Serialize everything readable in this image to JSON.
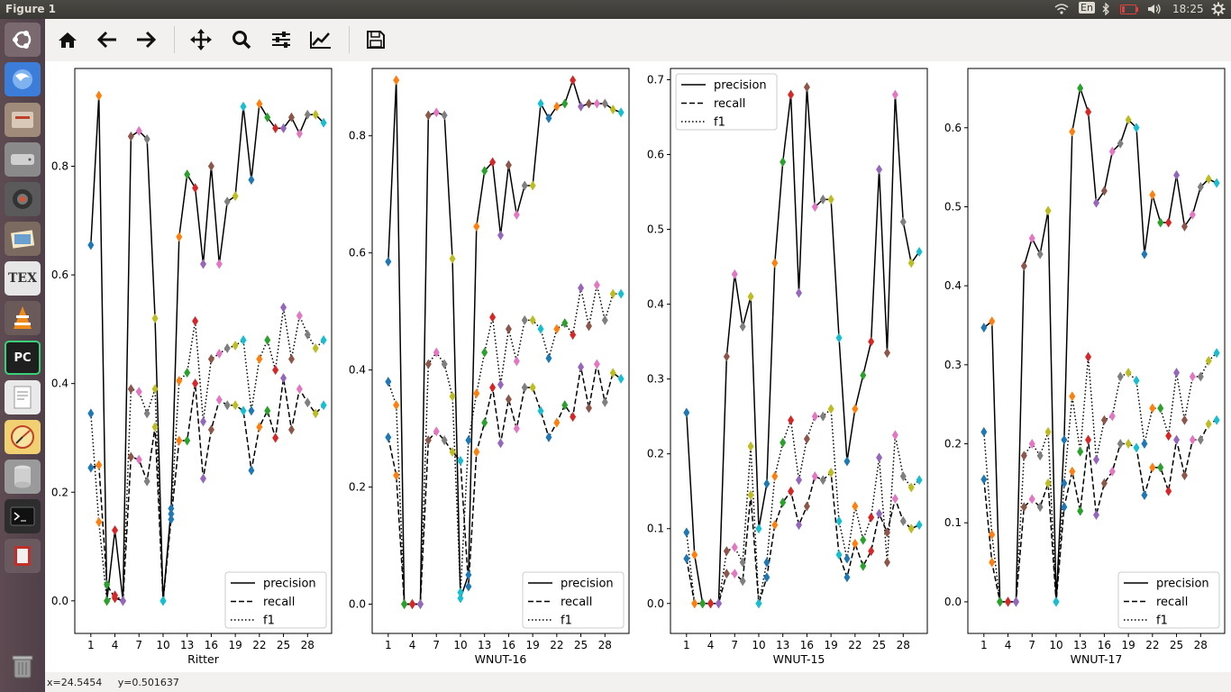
{
  "window": {
    "title": "Figure 1"
  },
  "tray": {
    "keyboard": "En",
    "time": "18:25"
  },
  "launcher": {
    "items": [
      "ubuntu-logo-icon",
      "browser-icon",
      "file-manager-icon",
      "disk-icon",
      "camera-icon",
      "photos-icon",
      "tex-icon",
      "vlc-icon",
      "pycharm-icon",
      "text-editor-icon",
      "spyder-icon",
      "database-icon",
      "terminal-icon",
      "book-icon",
      "trash-icon"
    ],
    "tex_label": "TEX",
    "pc_label": "PC"
  },
  "toolbar": {
    "buttons": [
      "home-icon",
      "back-arrow-icon",
      "forward-arrow-icon",
      "pan-icon",
      "zoom-icon",
      "configure-subplots-icon",
      "edit-axis-icon",
      "save-icon"
    ]
  },
  "status": {
    "coords": "x=24.5454     y=0.501637"
  },
  "colors": {
    "markers": [
      "#1f77b4",
      "#ff7f0e",
      "#2ca02c",
      "#d62728",
      "#9467bd",
      "#8c564b",
      "#e377c2",
      "#7f7f7f",
      "#bcbd22",
      "#17becf"
    ]
  },
  "chart_data": [
    {
      "type": "line",
      "xlabel": "Ritter",
      "ylabel": "",
      "xlim": [
        -1,
        31
      ],
      "ylim": [
        -0.06,
        0.98
      ],
      "xticks": [
        1,
        4,
        7,
        10,
        13,
        16,
        19,
        22,
        25,
        28
      ],
      "yticks": [
        0.0,
        0.2,
        0.4,
        0.6,
        0.8
      ],
      "ytick_labels": [
        "0.0",
        "0.2",
        "0.4",
        "0.6",
        "0.8"
      ],
      "legend": {
        "placement": "lower-right",
        "entries": [
          "precision",
          "recall",
          "f1"
        ]
      },
      "series": [
        {
          "name": "precision",
          "style": "solid",
          "values": [
            0.655,
            0.93,
            0.0,
            0.13,
            0.0,
            0.855,
            0.865,
            0.85,
            0.52,
            0.0,
            0.17,
            0.67,
            0.785,
            0.76,
            0.62,
            0.8,
            0.62,
            0.735,
            0.745,
            0.91,
            0.775,
            0.915,
            0.89,
            0.87,
            0.87,
            0.89,
            0.86,
            0.895,
            0.895,
            0.88
          ]
        },
        {
          "name": "recall",
          "style": "dashed",
          "values": [
            0.245,
            0.25,
            0.03,
            0.005,
            0.0,
            0.265,
            0.26,
            0.22,
            0.32,
            0.0,
            0.15,
            0.295,
            0.295,
            0.4,
            0.225,
            0.315,
            0.37,
            0.36,
            0.36,
            0.35,
            0.24,
            0.32,
            0.35,
            0.3,
            0.41,
            0.315,
            0.39,
            0.365,
            0.345,
            0.36
          ]
        },
        {
          "name": "f1",
          "style": "dotted",
          "values": [
            0.345,
            0.145,
            0.0,
            0.01,
            0.0,
            0.39,
            0.385,
            0.345,
            0.39,
            0.0,
            0.16,
            0.405,
            0.42,
            0.515,
            0.33,
            0.445,
            0.455,
            0.465,
            0.47,
            0.48,
            0.35,
            0.445,
            0.48,
            0.425,
            0.54,
            0.445,
            0.525,
            0.49,
            0.465,
            0.48
          ]
        }
      ]
    },
    {
      "type": "line",
      "xlabel": "WNUT-16",
      "ylabel": "",
      "xlim": [
        -1,
        31
      ],
      "ylim": [
        -0.05,
        0.915
      ],
      "xticks": [
        1,
        4,
        7,
        10,
        13,
        16,
        19,
        22,
        25,
        28
      ],
      "yticks": [
        0.0,
        0.2,
        0.4,
        0.6,
        0.8
      ],
      "ytick_labels": [
        "0.0",
        "0.2",
        "0.4",
        "0.6",
        "0.8"
      ],
      "legend": {
        "placement": "lower-right",
        "entries": [
          "precision",
          "recall",
          "f1"
        ]
      },
      "series": [
        {
          "name": "precision",
          "style": "solid",
          "values": [
            0.585,
            0.895,
            0.0,
            0.0,
            0.0,
            0.835,
            0.84,
            0.835,
            0.59,
            0.01,
            0.05,
            0.645,
            0.74,
            0.755,
            0.63,
            0.75,
            0.665,
            0.715,
            0.715,
            0.855,
            0.83,
            0.85,
            0.855,
            0.895,
            0.85,
            0.855,
            0.855,
            0.855,
            0.845,
            0.84
          ]
        },
        {
          "name": "recall",
          "style": "dashed",
          "values": [
            0.285,
            0.22,
            0.0,
            0.0,
            0.0,
            0.28,
            0.295,
            0.28,
            0.26,
            0.245,
            0.03,
            0.26,
            0.31,
            0.37,
            0.275,
            0.35,
            0.3,
            0.37,
            0.37,
            0.33,
            0.285,
            0.31,
            0.34,
            0.32,
            0.405,
            0.335,
            0.41,
            0.345,
            0.395,
            0.385
          ]
        },
        {
          "name": "f1",
          "style": "dotted",
          "values": [
            0.38,
            0.34,
            0.0,
            0.0,
            0.0,
            0.41,
            0.43,
            0.41,
            0.355,
            0.02,
            0.28,
            0.36,
            0.43,
            0.49,
            0.375,
            0.47,
            0.415,
            0.485,
            0.485,
            0.47,
            0.42,
            0.47,
            0.48,
            0.46,
            0.54,
            0.475,
            0.545,
            0.485,
            0.53,
            0.53
          ]
        }
      ]
    },
    {
      "type": "line",
      "xlabel": "WNUT-15",
      "ylabel": "",
      "xlim": [
        -1,
        31
      ],
      "ylim": [
        -0.04,
        0.715
      ],
      "xticks": [
        1,
        4,
        7,
        10,
        13,
        16,
        19,
        22,
        25,
        28
      ],
      "yticks": [
        0.0,
        0.1,
        0.2,
        0.3,
        0.4,
        0.5,
        0.6,
        0.7
      ],
      "ytick_labels": [
        "0.0",
        "0.1",
        "0.2",
        "0.3",
        "0.4",
        "0.5",
        "0.6",
        "0.7"
      ],
      "legend": {
        "placement": "upper-left",
        "entries": [
          "precision",
          "recall",
          "f1"
        ]
      },
      "series": [
        {
          "name": "precision",
          "style": "solid",
          "values": [
            0.255,
            0.065,
            0.0,
            0.0,
            0.0,
            0.33,
            0.44,
            0.37,
            0.41,
            0.1,
            0.16,
            0.455,
            0.59,
            0.68,
            0.415,
            0.69,
            0.53,
            0.54,
            0.54,
            0.355,
            0.19,
            0.26,
            0.305,
            0.35,
            0.58,
            0.335,
            0.68,
            0.51,
            0.455,
            0.47
          ]
        },
        {
          "name": "recall",
          "style": "dashed",
          "values": [
            0.06,
            0.0,
            0.0,
            0.0,
            0.0,
            0.04,
            0.04,
            0.03,
            0.145,
            0.0,
            0.035,
            0.105,
            0.135,
            0.15,
            0.105,
            0.13,
            0.17,
            0.165,
            0.175,
            0.065,
            0.035,
            0.08,
            0.05,
            0.07,
            0.12,
            0.095,
            0.14,
            0.11,
            0.1,
            0.105
          ]
        },
        {
          "name": "f1",
          "style": "dotted",
          "values": [
            0.095,
            0.0,
            0.0,
            0.0,
            0.0,
            0.07,
            0.075,
            0.055,
            0.21,
            0.0,
            0.055,
            0.17,
            0.215,
            0.245,
            0.165,
            0.22,
            0.25,
            0.25,
            0.26,
            0.11,
            0.06,
            0.13,
            0.085,
            0.115,
            0.195,
            0.055,
            0.225,
            0.17,
            0.155,
            0.165
          ]
        }
      ]
    },
    {
      "type": "line",
      "xlabel": "WNUT-17",
      "ylabel": "",
      "xlim": [
        -1,
        31
      ],
      "ylim": [
        -0.04,
        0.675
      ],
      "xticks": [
        1,
        4,
        7,
        10,
        13,
        16,
        19,
        22,
        25,
        28
      ],
      "yticks": [
        0.0,
        0.1,
        0.2,
        0.3,
        0.4,
        0.5,
        0.6
      ],
      "ytick_labels": [
        "0.0",
        "0.1",
        "0.2",
        "0.3",
        "0.4",
        "0.5",
        "0.6"
      ],
      "legend": {
        "placement": "lower-right",
        "entries": [
          "precision",
          "recall",
          "f1"
        ]
      },
      "series": [
        {
          "name": "precision",
          "style": "solid",
          "values": [
            0.347,
            0.355,
            0.0,
            0.0,
            0.0,
            0.425,
            0.46,
            0.44,
            0.495,
            0.0,
            0.205,
            0.595,
            0.65,
            0.62,
            0.505,
            0.52,
            0.57,
            0.58,
            0.61,
            0.6,
            0.44,
            0.515,
            0.48,
            0.48,
            0.54,
            0.475,
            0.49,
            0.525,
            0.535,
            0.53
          ]
        },
        {
          "name": "recall",
          "style": "dashed",
          "values": [
            0.155,
            0.05,
            0.0,
            0.0,
            0.0,
            0.12,
            0.13,
            0.12,
            0.15,
            0.0,
            0.12,
            0.165,
            0.115,
            0.205,
            0.11,
            0.15,
            0.165,
            0.2,
            0.2,
            0.195,
            0.135,
            0.17,
            0.17,
            0.14,
            0.205,
            0.16,
            0.205,
            0.205,
            0.225,
            0.23
          ]
        },
        {
          "name": "f1",
          "style": "dotted",
          "values": [
            0.215,
            0.085,
            0.0,
            0.0,
            0.0,
            0.185,
            0.2,
            0.185,
            0.215,
            0.0,
            0.15,
            0.26,
            0.19,
            0.31,
            0.18,
            0.23,
            0.235,
            0.285,
            0.29,
            0.28,
            0.2,
            0.245,
            0.245,
            0.21,
            0.29,
            0.23,
            0.285,
            0.285,
            0.305,
            0.315
          ]
        }
      ]
    }
  ]
}
